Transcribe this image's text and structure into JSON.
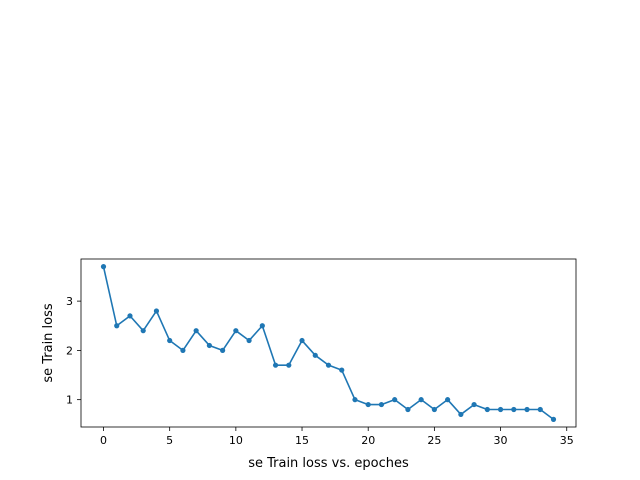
{
  "chart_data": {
    "type": "line",
    "title": "",
    "xlabel": "se Train loss vs. epoches",
    "ylabel": "se Train loss",
    "xlim": [
      -1.7,
      35.7
    ],
    "ylim": [
      0.445,
      3.855
    ],
    "x_ticks": [
      0,
      5,
      10,
      15,
      20,
      25,
      30,
      35
    ],
    "y_ticks": [
      1,
      2,
      3
    ],
    "grid": false,
    "legend": "none",
    "series": [
      {
        "color": "#1f77b4",
        "marker": "circle",
        "x": [
          0,
          1,
          2,
          3,
          4,
          5,
          6,
          7,
          8,
          9,
          10,
          11,
          12,
          13,
          14,
          15,
          16,
          17,
          18,
          19,
          20,
          21,
          22,
          23,
          24,
          25,
          26,
          27,
          28,
          29,
          30,
          31,
          32,
          33,
          34
        ],
        "values": [
          3.7,
          2.5,
          2.7,
          2.4,
          2.8,
          2.2,
          2.0,
          2.4,
          2.1,
          2.0,
          2.4,
          2.2,
          2.5,
          1.7,
          1.7,
          2.2,
          1.9,
          1.7,
          1.6,
          1.0,
          0.9,
          0.9,
          1.0,
          0.8,
          1.0,
          0.8,
          1.0,
          0.7,
          0.9,
          0.8,
          0.8,
          0.8,
          0.8,
          0.8,
          0.6
        ]
      }
    ]
  }
}
